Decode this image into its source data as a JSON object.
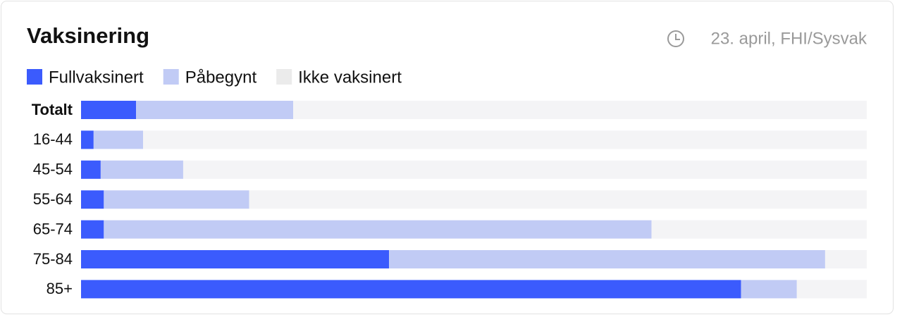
{
  "chart_data": {
    "type": "stacked-bar",
    "orientation": "horizontal",
    "title": "Vaksinering",
    "subtitle": "23. april, FHI/Sysvak",
    "categories": [
      "Totalt",
      "16-44",
      "45-54",
      "55-64",
      "65-74",
      "75-84",
      "85+"
    ],
    "series": [
      {
        "name": "Fullvaksinert",
        "color": "#3b5bfd",
        "values": [
          7,
          1.6,
          2.5,
          2.9,
          2.9,
          39.2,
          84
        ]
      },
      {
        "name": "Påbegynt",
        "color": "#c1cbf5",
        "values": [
          20,
          6.3,
          10.5,
          18.5,
          69.7,
          55.5,
          7.1
        ]
      },
      {
        "name": "Ikke vaksinert",
        "color": "#f4f4f6",
        "values": [
          73,
          92.1,
          87,
          78.6,
          27.4,
          5.3,
          8.9
        ]
      }
    ],
    "xlim": [
      0,
      100
    ]
  }
}
